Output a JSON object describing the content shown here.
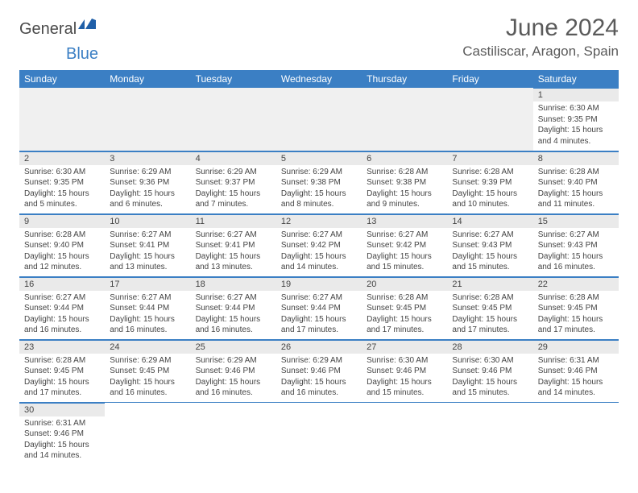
{
  "logo": {
    "text1": "General",
    "text2": "Blue"
  },
  "title": "June 2024",
  "location": "Castiliscar, Aragon, Spain",
  "colors": {
    "header_bg": "#3b7fc4",
    "header_text": "#ffffff",
    "daynum_bg": "#eaeaea",
    "border": "#3b7fc4",
    "text": "#444444",
    "logo_gray": "#4a4a4a",
    "logo_blue": "#3b7fc4"
  },
  "weekdays": [
    "Sunday",
    "Monday",
    "Tuesday",
    "Wednesday",
    "Thursday",
    "Friday",
    "Saturday"
  ],
  "weeks": [
    [
      null,
      null,
      null,
      null,
      null,
      null,
      {
        "n": "1",
        "sr": "Sunrise: 6:30 AM",
        "ss": "Sunset: 9:35 PM",
        "dl": "Daylight: 15 hours and 4 minutes."
      }
    ],
    [
      {
        "n": "2",
        "sr": "Sunrise: 6:30 AM",
        "ss": "Sunset: 9:35 PM",
        "dl": "Daylight: 15 hours and 5 minutes."
      },
      {
        "n": "3",
        "sr": "Sunrise: 6:29 AM",
        "ss": "Sunset: 9:36 PM",
        "dl": "Daylight: 15 hours and 6 minutes."
      },
      {
        "n": "4",
        "sr": "Sunrise: 6:29 AM",
        "ss": "Sunset: 9:37 PM",
        "dl": "Daylight: 15 hours and 7 minutes."
      },
      {
        "n": "5",
        "sr": "Sunrise: 6:29 AM",
        "ss": "Sunset: 9:38 PM",
        "dl": "Daylight: 15 hours and 8 minutes."
      },
      {
        "n": "6",
        "sr": "Sunrise: 6:28 AM",
        "ss": "Sunset: 9:38 PM",
        "dl": "Daylight: 15 hours and 9 minutes."
      },
      {
        "n": "7",
        "sr": "Sunrise: 6:28 AM",
        "ss": "Sunset: 9:39 PM",
        "dl": "Daylight: 15 hours and 10 minutes."
      },
      {
        "n": "8",
        "sr": "Sunrise: 6:28 AM",
        "ss": "Sunset: 9:40 PM",
        "dl": "Daylight: 15 hours and 11 minutes."
      }
    ],
    [
      {
        "n": "9",
        "sr": "Sunrise: 6:28 AM",
        "ss": "Sunset: 9:40 PM",
        "dl": "Daylight: 15 hours and 12 minutes."
      },
      {
        "n": "10",
        "sr": "Sunrise: 6:27 AM",
        "ss": "Sunset: 9:41 PM",
        "dl": "Daylight: 15 hours and 13 minutes."
      },
      {
        "n": "11",
        "sr": "Sunrise: 6:27 AM",
        "ss": "Sunset: 9:41 PM",
        "dl": "Daylight: 15 hours and 13 minutes."
      },
      {
        "n": "12",
        "sr": "Sunrise: 6:27 AM",
        "ss": "Sunset: 9:42 PM",
        "dl": "Daylight: 15 hours and 14 minutes."
      },
      {
        "n": "13",
        "sr": "Sunrise: 6:27 AM",
        "ss": "Sunset: 9:42 PM",
        "dl": "Daylight: 15 hours and 15 minutes."
      },
      {
        "n": "14",
        "sr": "Sunrise: 6:27 AM",
        "ss": "Sunset: 9:43 PM",
        "dl": "Daylight: 15 hours and 15 minutes."
      },
      {
        "n": "15",
        "sr": "Sunrise: 6:27 AM",
        "ss": "Sunset: 9:43 PM",
        "dl": "Daylight: 15 hours and 16 minutes."
      }
    ],
    [
      {
        "n": "16",
        "sr": "Sunrise: 6:27 AM",
        "ss": "Sunset: 9:44 PM",
        "dl": "Daylight: 15 hours and 16 minutes."
      },
      {
        "n": "17",
        "sr": "Sunrise: 6:27 AM",
        "ss": "Sunset: 9:44 PM",
        "dl": "Daylight: 15 hours and 16 minutes."
      },
      {
        "n": "18",
        "sr": "Sunrise: 6:27 AM",
        "ss": "Sunset: 9:44 PM",
        "dl": "Daylight: 15 hours and 16 minutes."
      },
      {
        "n": "19",
        "sr": "Sunrise: 6:27 AM",
        "ss": "Sunset: 9:44 PM",
        "dl": "Daylight: 15 hours and 17 minutes."
      },
      {
        "n": "20",
        "sr": "Sunrise: 6:28 AM",
        "ss": "Sunset: 9:45 PM",
        "dl": "Daylight: 15 hours and 17 minutes."
      },
      {
        "n": "21",
        "sr": "Sunrise: 6:28 AM",
        "ss": "Sunset: 9:45 PM",
        "dl": "Daylight: 15 hours and 17 minutes."
      },
      {
        "n": "22",
        "sr": "Sunrise: 6:28 AM",
        "ss": "Sunset: 9:45 PM",
        "dl": "Daylight: 15 hours and 17 minutes."
      }
    ],
    [
      {
        "n": "23",
        "sr": "Sunrise: 6:28 AM",
        "ss": "Sunset: 9:45 PM",
        "dl": "Daylight: 15 hours and 17 minutes."
      },
      {
        "n": "24",
        "sr": "Sunrise: 6:29 AM",
        "ss": "Sunset: 9:45 PM",
        "dl": "Daylight: 15 hours and 16 minutes."
      },
      {
        "n": "25",
        "sr": "Sunrise: 6:29 AM",
        "ss": "Sunset: 9:46 PM",
        "dl": "Daylight: 15 hours and 16 minutes."
      },
      {
        "n": "26",
        "sr": "Sunrise: 6:29 AM",
        "ss": "Sunset: 9:46 PM",
        "dl": "Daylight: 15 hours and 16 minutes."
      },
      {
        "n": "27",
        "sr": "Sunrise: 6:30 AM",
        "ss": "Sunset: 9:46 PM",
        "dl": "Daylight: 15 hours and 15 minutes."
      },
      {
        "n": "28",
        "sr": "Sunrise: 6:30 AM",
        "ss": "Sunset: 9:46 PM",
        "dl": "Daylight: 15 hours and 15 minutes."
      },
      {
        "n": "29",
        "sr": "Sunrise: 6:31 AM",
        "ss": "Sunset: 9:46 PM",
        "dl": "Daylight: 15 hours and 14 minutes."
      }
    ],
    [
      {
        "n": "30",
        "sr": "Sunrise: 6:31 AM",
        "ss": "Sunset: 9:46 PM",
        "dl": "Daylight: 15 hours and 14 minutes."
      },
      null,
      null,
      null,
      null,
      null,
      null
    ]
  ]
}
